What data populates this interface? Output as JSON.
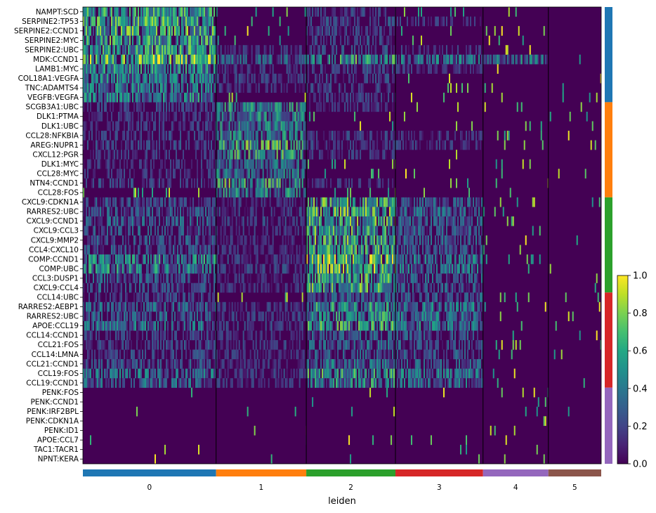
{
  "chart_data": {
    "type": "heatmap",
    "title": "",
    "xlabel": "leiden",
    "ylabel": "",
    "colormap": "viridis",
    "colorbar": {
      "min": 0.0,
      "max": 1.0,
      "ticks": [
        "0.0",
        "0.2",
        "0.4",
        "0.6",
        "0.8",
        "1.0"
      ]
    },
    "groups": [
      {
        "label": "0",
        "color": "#1f77b4",
        "cell_fraction": 0.257
      },
      {
        "label": "1",
        "color": "#ff7f0e",
        "cell_fraction": 0.174
      },
      {
        "label": "2",
        "color": "#2ca02c",
        "cell_fraction": 0.172
      },
      {
        "label": "3",
        "color": "#d62728",
        "cell_fraction": 0.169
      },
      {
        "label": "4",
        "color": "#9467bd",
        "cell_fraction": 0.126
      },
      {
        "label": "5",
        "color": "#8c564b",
        "cell_fraction": 0.101
      }
    ],
    "gene_groups": [
      {
        "color": "#1f77b4",
        "n_rows": 10
      },
      {
        "color": "#ff7f0e",
        "n_rows": 10
      },
      {
        "color": "#2ca02c",
        "n_rows": 10
      },
      {
        "color": "#d62728",
        "n_rows": 10
      },
      {
        "color": "#9467bd",
        "n_rows": 8
      }
    ],
    "rows": [
      "NAMPT:SCD",
      "SERPINE2:TP53",
      "SERPINE2:CCND1",
      "SERPINE2:MYC",
      "SERPINE2:UBC",
      "MDK:CCND1",
      "LAMB1:MYC",
      "COL18A1:VEGFA",
      "TNC:ADAMTS4",
      "VEGFB:VEGFA",
      "SCGB3A1:UBC",
      "DLK1:PTMA",
      "DLK1:UBC",
      "CCL28:NFKBIA",
      "AREG:NUPR1",
      "CXCL12:PGR",
      "DLK1:MYC",
      "CCL28:MYC",
      "NTN4:CCND1",
      "CCL28:FOS",
      "CXCL9:CDKN1A",
      "RARRES2:UBC",
      "CXCL9:CCND1",
      "CXCL9:CCL3",
      "CXCL9:MMP2",
      "CCL4:CXCL10",
      "COMP:CCND1",
      "COMP:UBC",
      "CCL3:DUSP1",
      "CXCL9:CCL4",
      "CCL14:UBC",
      "RARRES2:AEBP1",
      "RARRES2:UBC",
      "APOE:CCL19",
      "CCL14:CCND1",
      "CCL21:FOS",
      "CCL14:LMNA",
      "CCL21:CCND1",
      "CCL19:FOS",
      "CCL19:CCND1",
      "PENK:FOS",
      "PENK:CCND1",
      "PENK:IRF2BPL",
      "PENK:CDKN1A",
      "PENK:ID1",
      "APOE:CCL7",
      "TAC1:TACR1",
      "NPNT:KERA"
    ],
    "mean_expression": [
      [
        0.48,
        0.07,
        0.12,
        0.07,
        0.05,
        0.04
      ],
      [
        0.52,
        0.07,
        0.14,
        0.08,
        0.05,
        0.04
      ],
      [
        0.55,
        0.07,
        0.12,
        0.07,
        0.06,
        0.04
      ],
      [
        0.5,
        0.06,
        0.12,
        0.06,
        0.05,
        0.04
      ],
      [
        0.5,
        0.08,
        0.14,
        0.08,
        0.06,
        0.05
      ],
      [
        0.66,
        0.28,
        0.5,
        0.34,
        0.35,
        0.05
      ],
      [
        0.42,
        0.1,
        0.14,
        0.08,
        0.05,
        0.04
      ],
      [
        0.38,
        0.12,
        0.12,
        0.06,
        0.05,
        0.04
      ],
      [
        0.35,
        0.08,
        0.1,
        0.06,
        0.04,
        0.04
      ],
      [
        0.38,
        0.06,
        0.1,
        0.06,
        0.04,
        0.04
      ],
      [
        0.12,
        0.42,
        0.08,
        0.06,
        0.05,
        0.04
      ],
      [
        0.08,
        0.4,
        0.06,
        0.05,
        0.06,
        0.04
      ],
      [
        0.08,
        0.38,
        0.06,
        0.05,
        0.05,
        0.04
      ],
      [
        0.1,
        0.4,
        0.12,
        0.08,
        0.06,
        0.04
      ],
      [
        0.14,
        0.55,
        0.1,
        0.08,
        0.07,
        0.04
      ],
      [
        0.08,
        0.5,
        0.08,
        0.05,
        0.05,
        0.04
      ],
      [
        0.08,
        0.3,
        0.06,
        0.05,
        0.04,
        0.04
      ],
      [
        0.08,
        0.35,
        0.06,
        0.05,
        0.04,
        0.04
      ],
      [
        0.12,
        0.52,
        0.08,
        0.06,
        0.05,
        0.04
      ],
      [
        0.06,
        0.4,
        0.06,
        0.05,
        0.05,
        0.04
      ],
      [
        0.18,
        0.08,
        0.55,
        0.22,
        0.06,
        0.04
      ],
      [
        0.2,
        0.1,
        0.58,
        0.25,
        0.06,
        0.04
      ],
      [
        0.24,
        0.12,
        0.56,
        0.25,
        0.06,
        0.04
      ],
      [
        0.18,
        0.08,
        0.54,
        0.2,
        0.05,
        0.04
      ],
      [
        0.2,
        0.08,
        0.55,
        0.22,
        0.05,
        0.04
      ],
      [
        0.18,
        0.08,
        0.5,
        0.2,
        0.05,
        0.04
      ],
      [
        0.4,
        0.12,
        0.68,
        0.3,
        0.06,
        0.04
      ],
      [
        0.4,
        0.12,
        0.66,
        0.3,
        0.06,
        0.04
      ],
      [
        0.2,
        0.08,
        0.52,
        0.22,
        0.05,
        0.04
      ],
      [
        0.2,
        0.08,
        0.55,
        0.22,
        0.05,
        0.04
      ],
      [
        0.12,
        0.06,
        0.22,
        0.2,
        0.05,
        0.04
      ],
      [
        0.24,
        0.1,
        0.45,
        0.34,
        0.06,
        0.04
      ],
      [
        0.24,
        0.1,
        0.45,
        0.32,
        0.06,
        0.04
      ],
      [
        0.3,
        0.12,
        0.5,
        0.35,
        0.06,
        0.04
      ],
      [
        0.12,
        0.08,
        0.22,
        0.18,
        0.05,
        0.04
      ],
      [
        0.14,
        0.1,
        0.25,
        0.2,
        0.05,
        0.04
      ],
      [
        0.12,
        0.08,
        0.22,
        0.18,
        0.05,
        0.04
      ],
      [
        0.18,
        0.1,
        0.3,
        0.22,
        0.05,
        0.04
      ],
      [
        0.3,
        0.12,
        0.48,
        0.32,
        0.06,
        0.04
      ],
      [
        0.26,
        0.1,
        0.42,
        0.3,
        0.06,
        0.04
      ],
      [
        0.02,
        0.02,
        0.02,
        0.02,
        0.06,
        0.02
      ],
      [
        0.02,
        0.02,
        0.02,
        0.02,
        0.06,
        0.02
      ],
      [
        0.02,
        0.02,
        0.02,
        0.02,
        0.05,
        0.02
      ],
      [
        0.02,
        0.02,
        0.02,
        0.02,
        0.05,
        0.02
      ],
      [
        0.02,
        0.02,
        0.02,
        0.02,
        0.05,
        0.02
      ],
      [
        0.03,
        0.02,
        0.04,
        0.03,
        0.05,
        0.02
      ],
      [
        0.02,
        0.02,
        0.02,
        0.02,
        0.04,
        0.02
      ],
      [
        0.02,
        0.02,
        0.02,
        0.02,
        0.04,
        0.02
      ]
    ]
  }
}
